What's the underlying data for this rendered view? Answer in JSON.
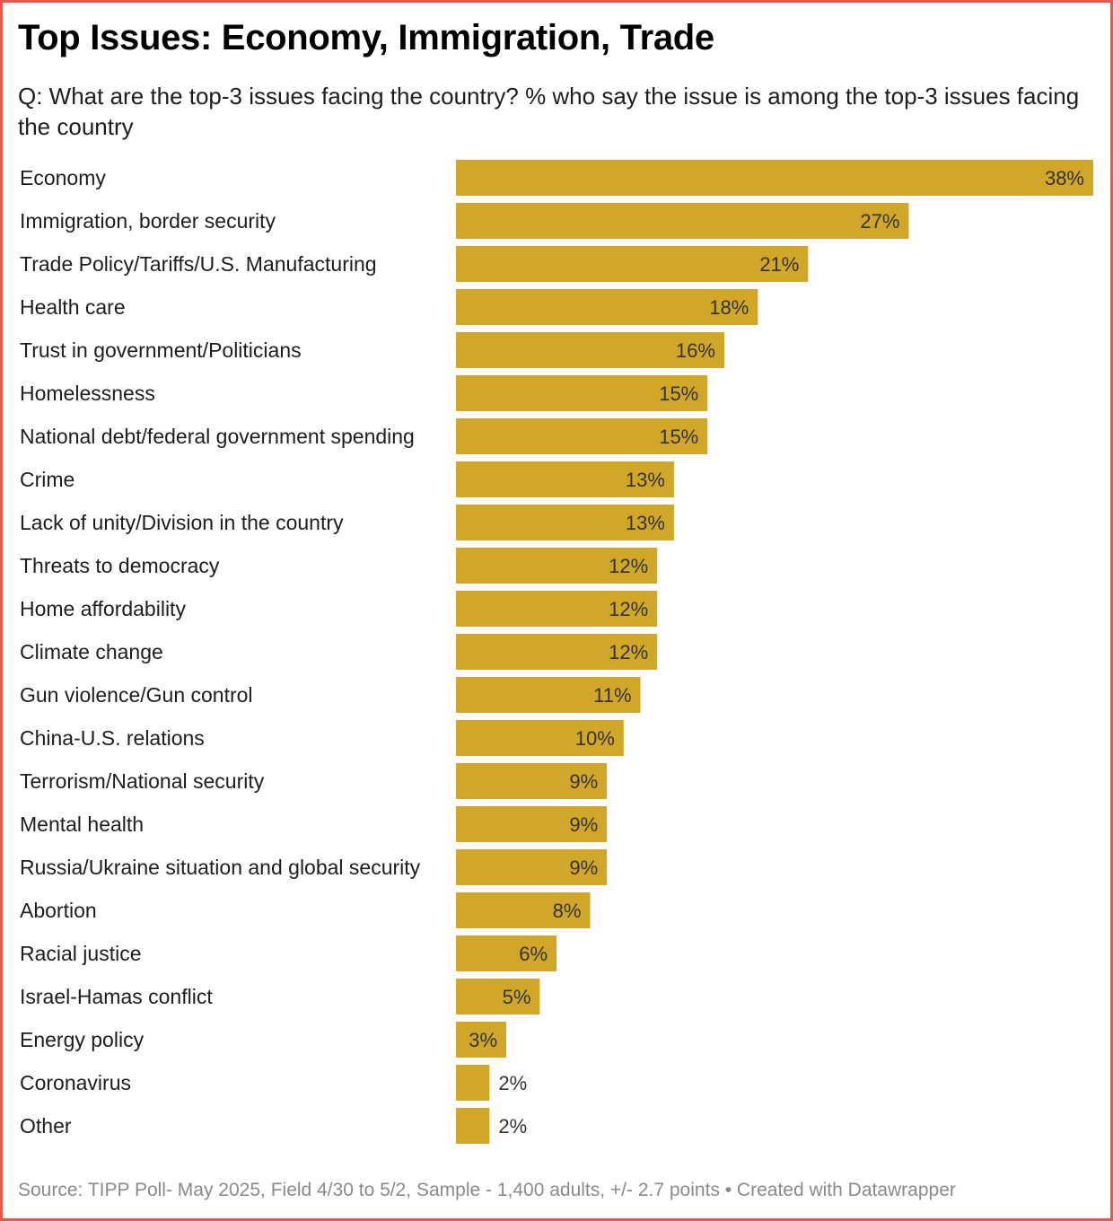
{
  "header": {
    "title": "Top Issues: Economy, Immigration, Trade",
    "subtitle": "Q: What are the top-3 issues facing the country? % who say the issue is among the top-3 issues facing the country"
  },
  "footer": {
    "source": "Source: TIPP Poll- May 2025, Field 4/30 to 5/2, Sample - 1,400 adults, +/- 2.7 points • Created with Datawrapper"
  },
  "colors": {
    "bar": "#d1a72a",
    "border": "#e8574c",
    "label": "#1d1d1d",
    "value_label": "#333333",
    "footer": "#8a8a8a"
  },
  "chart_data": {
    "type": "bar",
    "orientation": "horizontal",
    "unit": "%",
    "categories": [
      "Economy",
      "Immigration, border security",
      "Trade Policy/Tariffs/U.S. Manufacturing",
      "Health care",
      "Trust in government/Politicians",
      "Homelessness",
      "National debt/federal government spending",
      "Crime",
      "Lack of unity/Division in the country",
      "Threats to democracy",
      "Home affordability",
      "Climate change",
      "Gun violence/Gun control",
      "China-U.S. relations",
      "Terrorism/National security",
      "Mental health",
      "Russia/Ukraine situation and global security",
      "Abortion",
      "Racial justice",
      "Israel-Hamas conflict",
      "Energy policy",
      "Coronavirus",
      "Other"
    ],
    "values": [
      38,
      27,
      21,
      18,
      16,
      15,
      15,
      13,
      13,
      12,
      12,
      12,
      11,
      10,
      9,
      9,
      9,
      8,
      6,
      5,
      3,
      2,
      2
    ],
    "value_labels": [
      "38%",
      "27%",
      "21%",
      "18%",
      "16%",
      "15%",
      "15%",
      "13%",
      "13%",
      "12%",
      "12%",
      "12%",
      "11%",
      "10%",
      "9%",
      "9%",
      "9%",
      "8%",
      "6%",
      "5%",
      "3%",
      "2%",
      "2%"
    ],
    "xlim": [
      0,
      38
    ],
    "grid": false,
    "legend": "none"
  }
}
